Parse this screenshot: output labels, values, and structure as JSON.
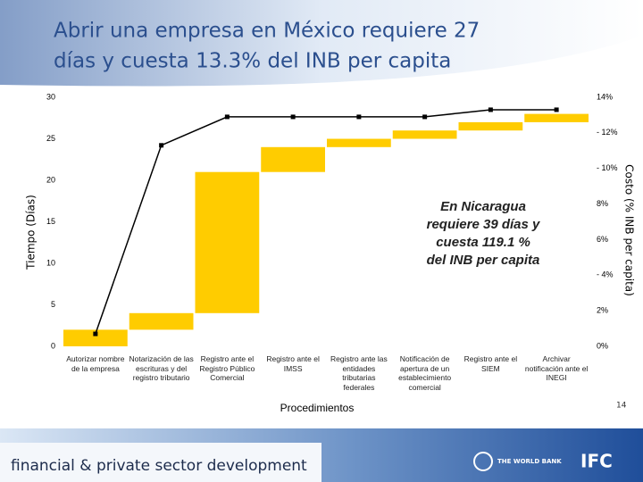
{
  "title_lines": [
    "Abrir una empresa en México requiere 27",
    "días y cuesta 13.3% del INB per capita"
  ],
  "chart_data": {
    "type": "waterfall",
    "categories": [
      "Autorizar nombre de la empresa",
      "Notarización de las escrituras y del registro tributario",
      "Registro ante el Registro Público Comercial",
      "Registro ante el IMSS",
      "Registro ante las entidades tributarias federales",
      "Notificación de apertura de un establecimiento comercial",
      "Registro ante el SIEM",
      "Archivar notificación ante el INEGI"
    ],
    "series": [
      {
        "name": "Tiempo (Días)",
        "color": "#ffcc00",
        "values": [
          2,
          2,
          17,
          3,
          1,
          1,
          1,
          1
        ]
      },
      {
        "name": "Costo (% INB per capita)",
        "color": "#000000",
        "axis": "y2",
        "values": [
          0.7,
          11.3,
          12.9,
          12.9,
          12.9,
          12.9,
          13.3,
          13.3
        ]
      }
    ],
    "y_label": "Tiempo (Días)",
    "y2_label": "Costo (% INB per capita)",
    "x_label": "Procedimientos",
    "ylim": [
      0,
      30
    ],
    "yticks": [
      0,
      5,
      10,
      15,
      20,
      25,
      30
    ],
    "y2lim": [
      0,
      14
    ],
    "y2ticks": [
      {
        "value": 0,
        "label": "0%"
      },
      {
        "value": 2,
        "label": "2%"
      },
      {
        "value": 4,
        "label": "- 4%"
      },
      {
        "value": 6,
        "label": "6%"
      },
      {
        "value": 8,
        "label": "8%"
      },
      {
        "value": 10,
        "label": "- 10%"
      },
      {
        "value": 12,
        "label": "- 12%"
      },
      {
        "value": 14,
        "label": "14%"
      }
    ],
    "annotation_lines": [
      "En Nicaragua",
      "requiere 39 días y",
      "cuesta 119.1 %",
      "del INB per capita"
    ]
  },
  "page_number": "14",
  "footer": {
    "tagline": "financial & private sector development",
    "logo_1": "THE WORLD BANK",
    "logo_2": "IFC"
  }
}
